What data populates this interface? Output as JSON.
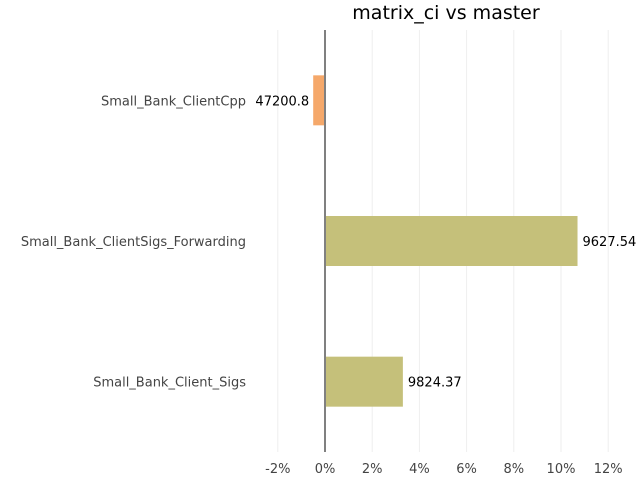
{
  "chart_data": {
    "type": "bar",
    "orientation": "horizontal",
    "title": "matrix_ci vs master",
    "xlabel": "",
    "ylabel": "",
    "xlim": [
      -2.5,
      12.5
    ],
    "xticks": [
      -2,
      0,
      2,
      4,
      6,
      8,
      10,
      12
    ],
    "xtick_labels": [
      "-2%",
      "0%",
      "2%",
      "4%",
      "6%",
      "8%",
      "10%",
      "12%"
    ],
    "grid": "vertical",
    "bars": [
      {
        "category": "Small_Bank_ClientCpp",
        "value": -0.5,
        "label": "47200.8",
        "color": "#f5a86a"
      },
      {
        "category": "Small_Bank_ClientSigs_Forwarding",
        "value": 10.7,
        "label": "9627.54",
        "color": "#c5c07a"
      },
      {
        "category": "Small_Bank_Client_Sigs",
        "value": 3.3,
        "label": "9824.37",
        "color": "#c5c07a"
      }
    ]
  }
}
